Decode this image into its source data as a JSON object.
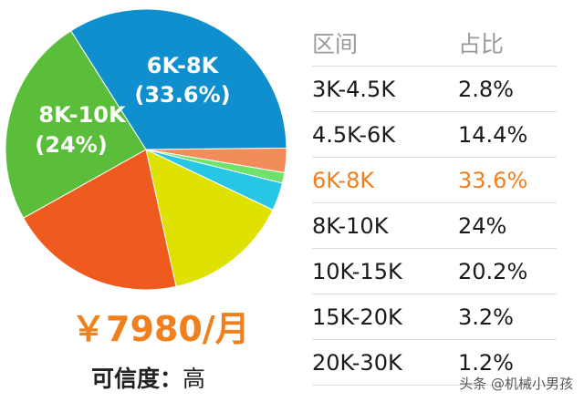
{
  "chart_data": {
    "type": "pie",
    "header": {
      "range": "区间",
      "share": "占比"
    },
    "highlight_index": 2,
    "slices": [
      {
        "label": "3K-4.5K",
        "value": 2.8,
        "display": "2.8%",
        "color": "#f28c5a"
      },
      {
        "label": "4.5K-6K",
        "value": 14.4,
        "display": "14.4%",
        "color": "#dfe200"
      },
      {
        "label": "6K-8K",
        "value": 33.6,
        "display": "33.6%",
        "color": "#0f8fce",
        "pie_label": [
          "6K-8K",
          "(33.6%)"
        ]
      },
      {
        "label": "8K-10K",
        "value": 24,
        "display": "24%",
        "color": "#5abe3a",
        "pie_label": [
          "8K-10K",
          "(24%)"
        ]
      },
      {
        "label": "10K-15K",
        "value": 20.2,
        "display": "20.2%",
        "color": "#ef5b1e"
      },
      {
        "label": "15K-20K",
        "value": 3.2,
        "display": "3.2%",
        "color": "#27c6e6"
      },
      {
        "label": "20K-30K",
        "value": 1.2,
        "display": "1.2%",
        "color": "#6ee36b"
      }
    ]
  },
  "summary": {
    "salary": "￥7980/月",
    "confidence_label": "可信度：",
    "confidence_value": "高"
  },
  "watermark": "头条 @机械小男孩"
}
